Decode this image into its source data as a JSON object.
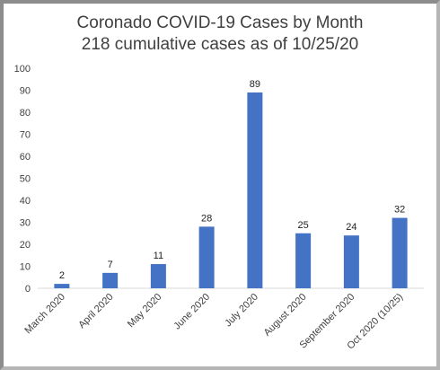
{
  "chart_data": {
    "type": "bar",
    "title": "Coronado COVID-19 Cases by Month",
    "subtitle": "218 cumulative cases as of 10/25/20",
    "xlabel": "",
    "ylabel": "",
    "categories": [
      "March 2020",
      "April 2020",
      "May 2020",
      "June 2020",
      "July 2020",
      "August 2020",
      "September 2020",
      "Oct 2020 (10/25)"
    ],
    "values": [
      2,
      7,
      11,
      28,
      89,
      25,
      24,
      32
    ],
    "ylim": [
      0,
      100
    ],
    "yticks": [
      0,
      10,
      20,
      30,
      40,
      50,
      60,
      70,
      80,
      90,
      100
    ],
    "grid": false,
    "data_labels": true,
    "bar_color": "#4472C4"
  }
}
